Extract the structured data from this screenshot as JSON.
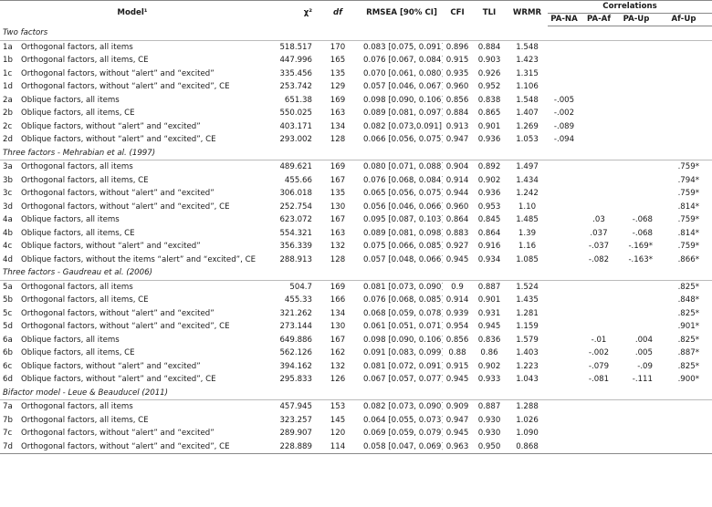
{
  "table": {
    "header": {
      "model": "Model¹",
      "chi2": "χ²",
      "df": "df",
      "rmsea": "RMSEA [90% CI]",
      "cfi": "CFI",
      "tli": "TLI",
      "wrmr": "WRMR",
      "correlations": "Correlations",
      "pa_na": "PA-NA",
      "pa_af": "PA-Af",
      "pa_up": "PA-Up",
      "af_up": "Af-Up"
    },
    "groups": [
      {
        "title": "Two factors",
        "rows": [
          [
            "1a",
            "Orthogonal factors, all items",
            "518.517",
            "170",
            "0.083 [0.075, 0.091]",
            "0.896",
            "0.884",
            "1.548",
            null,
            null,
            null,
            null
          ],
          [
            "1b",
            "Orthogonal factors, all items, CE",
            "447.996",
            "165",
            "0.076 [0.067, 0.084]",
            "0.915",
            "0.903",
            "1.423",
            null,
            null,
            null,
            null
          ],
          [
            "1c",
            "Orthogonal factors, without “alert” and “excited”",
            "335.456",
            "135",
            "0.070 [0.061, 0.080]",
            "0.935",
            "0.926",
            "1.315",
            null,
            null,
            null,
            null
          ],
          [
            "1d",
            "Orthogonal factors, without “alert” and “excited”, CE",
            "253.742",
            "129",
            "0.057 [0.046, 0.067]",
            "0.960",
            "0.952",
            "1.106",
            null,
            null,
            null,
            null
          ],
          [
            "2a",
            "Oblique factors, all items",
            "651.38",
            "169",
            "0.098 [0.090, 0.106]",
            "0.856",
            "0.838",
            "1.548",
            "-.005",
            null,
            null,
            null
          ],
          [
            "2b",
            "Oblique factors, all items, CE",
            "550.025",
            "163",
            "0.089 [0.081, 0.097]",
            "0.884",
            "0.865",
            "1.407",
            "-.002",
            null,
            null,
            null
          ],
          [
            "2c",
            "Oblique factors, without “alert” and “excited”",
            "403.171",
            "134",
            "0.082 [0.073,0.091]",
            "0.913",
            "0.901",
            "1.269",
            "-.089",
            null,
            null,
            null
          ],
          [
            "2d",
            "Oblique factors, without “alert” and “excited”, CE",
            "293.002",
            "128",
            "0.066 [0.056, 0.075]",
            "0.947",
            "0.936",
            "1.053",
            "-.094",
            null,
            null,
            null
          ]
        ]
      },
      {
        "title": "Three factors - Mehrabian et al. (1997)",
        "rows": [
          [
            "3a",
            "Orthogonal factors, all items",
            "489.621",
            "169",
            "0.080 [0.071, 0.088]",
            "0.904",
            "0.892",
            "1.497",
            null,
            null,
            null,
            ".759*"
          ],
          [
            "3b",
            "Orthogonal factors, all items, CE",
            "455.66",
            "167",
            "0.076 [0.068, 0.084]",
            "0.914",
            "0.902",
            "1.434",
            null,
            null,
            null,
            ".794*"
          ],
          [
            "3c",
            "Orthogonal factors, without “alert” and “excited”",
            "306.018",
            "135",
            "0.065 [0.056, 0.075]",
            "0.944",
            "0.936",
            "1.242",
            null,
            null,
            null,
            ".759*"
          ],
          [
            "3d",
            "Orthogonal factors, without “alert” and “excited”, CE",
            "252.754",
            "130",
            "0.056 [0.046, 0.066]",
            "0.960",
            "0.953",
            "1.10",
            null,
            null,
            null,
            ".814*"
          ],
          [
            "4a",
            "Oblique factors, all items",
            "623.072",
            "167",
            "0.095 [0.087, 0.103]",
            "0.864",
            "0.845",
            "1.485",
            null,
            ".03",
            "-.068",
            ".759*"
          ],
          [
            "4b",
            "Oblique factors, all items, CE",
            "554.321",
            "163",
            "0.089 [0.081, 0.098]",
            "0.883",
            "0.864",
            "1.39",
            null,
            ".037",
            "-.068",
            ".814*"
          ],
          [
            "4c",
            "Oblique factors, without “alert” and “excited”",
            "356.339",
            "132",
            "0.075 [0.066, 0.085]",
            "0.927",
            "0.916",
            "1.16",
            null,
            "-.037",
            "-.169*",
            ".759*"
          ],
          [
            "4d",
            "Oblique factors, without the items “alert” and “excited”, CE",
            "288.913",
            "128",
            "0.057 [0.048, 0.066]",
            "0.945",
            "0.934",
            "1.085",
            null,
            "-.082",
            "-.163*",
            ".866*"
          ]
        ]
      },
      {
        "title": "Three factors - Gaudreau et al. (2006)",
        "rows": [
          [
            "5a",
            "Orthogonal factors, all items",
            "504.7",
            "169",
            "0.081 [0.073, 0.090]",
            "0.9",
            "0.887",
            "1.524",
            null,
            null,
            null,
            ".825*"
          ],
          [
            "5b",
            "Orthogonal factors, all items, CE",
            "455.33",
            "166",
            "0.076 [0.068, 0.085]",
            "0.914",
            "0.901",
            "1.435",
            null,
            null,
            null,
            ".848*"
          ],
          [
            "5c",
            "Orthogonal factors, without “alert” and “excited”",
            "321.262",
            "134",
            "0.068 [0.059, 0.078]",
            "0.939",
            "0.931",
            "1.281",
            null,
            null,
            null,
            ".825*"
          ],
          [
            "5d",
            "Orthogonal factors, without “alert” and “excited”, CE",
            "273.144",
            "130",
            "0.061 [0.051, 0.071]",
            "0.954",
            "0.945",
            "1.159",
            null,
            null,
            null,
            ".901*"
          ],
          [
            "6a",
            "Oblique factors, all items",
            "649.886",
            "167",
            "0.098 [0.090, 0.106]",
            "0.856",
            "0.836",
            "1.579",
            null,
            "-.01",
            ".004",
            ".825*"
          ],
          [
            "6b",
            "Oblique factors, all items, CE",
            "562.126",
            "162",
            "0.091 [0.083, 0.099]",
            "0.88",
            "0.86",
            "1.403",
            null,
            "-.002",
            ".005",
            ".887*"
          ],
          [
            "6c",
            "Oblique factors, without “alert” and “excited”",
            "394.162",
            "132",
            "0.081 [0.072, 0.091]",
            "0.915",
            "0.902",
            "1.223",
            null,
            "-.079",
            "-.09",
            ".825*"
          ],
          [
            "6d",
            "Oblique factors, without “alert” and “excited”, CE",
            "295.833",
            "126",
            "0.067 [0.057, 0.077]",
            "0.945",
            "0.933",
            "1.043",
            null,
            "-.081",
            "-.111",
            ".900*"
          ]
        ]
      },
      {
        "title": "Bifactor model - Leue & Beauducel (2011)",
        "rows": [
          [
            "7a",
            "Orthogonal factors, all items",
            "457.945",
            "153",
            "0.082 [0.073, 0.090]",
            "0.909",
            "0.887",
            "1.288",
            null,
            null,
            null,
            null
          ],
          [
            "7b",
            "Orthogonal factors, all items, CE",
            "323.257",
            "145",
            "0.064 [0.055, 0.073]",
            "0.947",
            "0.930",
            "1.026",
            null,
            null,
            null,
            null
          ],
          [
            "7c",
            "Orthogonal factors, without “alert” and “excited”",
            "289.907",
            "120",
            "0.069 [0.059, 0.079]",
            "0.945",
            "0.930",
            "1.090",
            null,
            null,
            null,
            null
          ],
          [
            "7d",
            "Orthogonal factors, without “alert” and “excited”, CE",
            "228.889",
            "114",
            "0.058 [0.047, 0.069]",
            "0.963",
            "0.950",
            "0.868",
            null,
            null,
            null,
            null
          ]
        ]
      }
    ]
  }
}
